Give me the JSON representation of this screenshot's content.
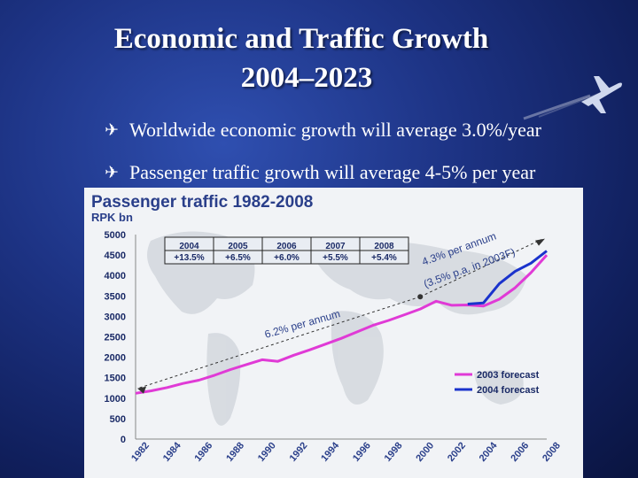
{
  "slide": {
    "title_line1": "Economic and Traffic Growth",
    "title_line2": "2004–2023",
    "bullets": [
      "Worldwide economic growth will average 3.0%/year",
      "Passenger traffic growth will average 4-5% per year"
    ],
    "bullet_icon": "airplane-bullet-icon",
    "colors": {
      "background": "#1d3384",
      "text": "#ffffff"
    }
  },
  "chart_data": {
    "type": "line",
    "title": "Passenger traffic 1982-2008",
    "ylabel": "RPK bn",
    "ylim": [
      0,
      5000
    ],
    "yticks": [
      0,
      500,
      1000,
      1500,
      2000,
      2500,
      3000,
      3500,
      4000,
      4500,
      5000
    ],
    "xlim": [
      1982,
      2008
    ],
    "xticks": [
      "1982",
      "1984",
      "1986",
      "1988",
      "1990",
      "1992",
      "1994",
      "1996",
      "1998",
      "2000",
      "2002",
      "2004",
      "2006",
      "2008"
    ],
    "series": [
      {
        "name": "2003 forecast",
        "color": "#e03ad6",
        "x": [
          1982,
          1983,
          1984,
          1985,
          1986,
          1987,
          1988,
          1989,
          1990,
          1991,
          1992,
          1993,
          1994,
          1995,
          1996,
          1997,
          1998,
          1999,
          2000,
          2001,
          2002,
          2003,
          2004,
          2005,
          2006,
          2007,
          2008
        ],
        "y": [
          1120,
          1180,
          1260,
          1360,
          1440,
          1560,
          1700,
          1820,
          1940,
          1900,
          2050,
          2180,
          2320,
          2460,
          2620,
          2780,
          2900,
          3040,
          3180,
          3370,
          3270,
          3280,
          3250,
          3420,
          3700,
          4070,
          4500
        ]
      },
      {
        "name": "2004 forecast",
        "color": "#1a33cc",
        "x": [
          2003,
          2004,
          2005,
          2006,
          2007,
          2008
        ],
        "y": [
          3300,
          3330,
          3800,
          4100,
          4300,
          4600
        ]
      }
    ],
    "annotations": [
      "6.2% per annum",
      "4.3% per annum",
      "(3.5% p.a. in 2003F)"
    ],
    "inset_table": {
      "years": [
        "2004",
        "2005",
        "2006",
        "2007",
        "2008"
      ],
      "growth": [
        "+13.5%",
        "+6.5%",
        "+6.0%",
        "+5.5%",
        "+5.4%"
      ]
    },
    "legend_position": "bottom-right",
    "grid": false
  }
}
